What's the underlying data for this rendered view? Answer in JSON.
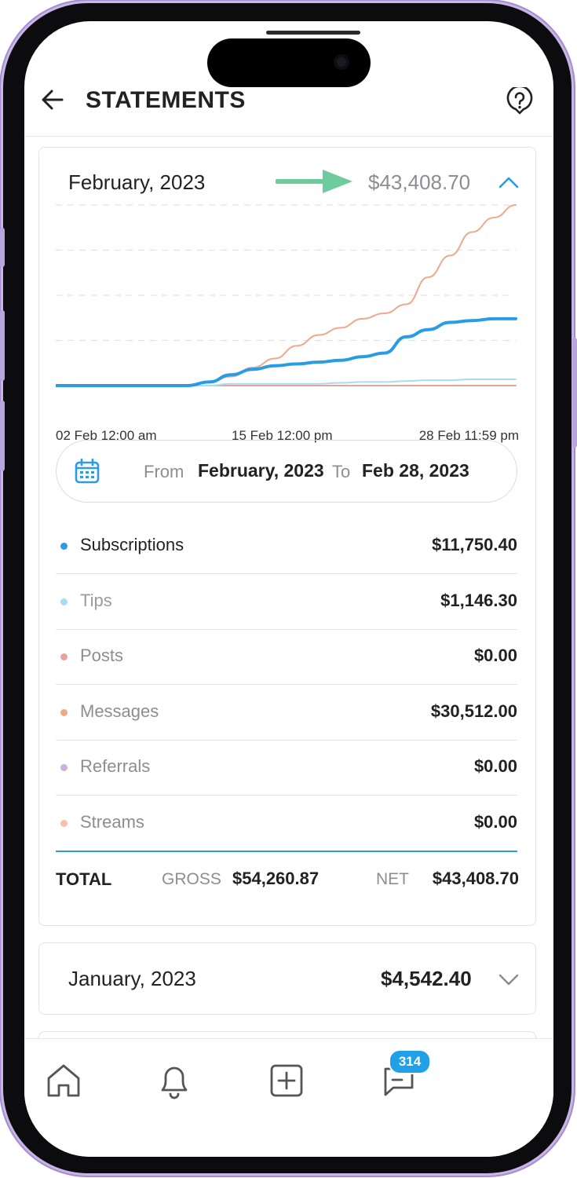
{
  "header": {
    "title": "STATEMENTS",
    "back_icon": "arrow-left-icon",
    "help_icon": "help-circle-icon"
  },
  "feb_card": {
    "month": "February, 2023",
    "amount": "$43,408.70",
    "expanded": true,
    "x_ticks": [
      "02 Feb 12:00 am",
      "15 Feb 12:00 pm",
      "28 Feb 11:59 pm"
    ],
    "range": {
      "from_word": "From",
      "from_value": "February, 2023",
      "to_word": "To",
      "to_value": "Feb 28, 2023"
    },
    "rows": [
      {
        "label": "Subscriptions",
        "value": "$11,750.40",
        "dot_color": "#2a9be5",
        "label_color": "#222222"
      },
      {
        "label": "Tips",
        "value": "$1,146.30",
        "dot_color": "#a9dcf2",
        "label_color": "#9a9aa0"
      },
      {
        "label": "Posts",
        "value": "$0.00",
        "dot_color": "#e8a39b",
        "label_color": "#8d8d93"
      },
      {
        "label": "Messages",
        "value": "$30,512.00",
        "dot_color": "#f0a88c",
        "label_color": "#8d8d93"
      },
      {
        "label": "Referrals",
        "value": "$0.00",
        "dot_color": "#c9b2e3",
        "label_color": "#8d8d93"
      },
      {
        "label": "Streams",
        "value": "$0.00",
        "dot_color": "#f6c1a8",
        "label_color": "#8d8d93"
      }
    ],
    "total": {
      "label": "TOTAL",
      "gross_word": "GROSS",
      "gross_value": "$54,260.87",
      "net_word": "NET",
      "net_value": "$43,408.70"
    }
  },
  "jan_card": {
    "month": "January, 2023",
    "amount": "$4,542.40",
    "expanded": false
  },
  "nav": {
    "items": [
      "home-icon",
      "bell-icon",
      "plus-square-icon",
      "chat-icon"
    ],
    "chat_badge": "314"
  },
  "chart_data": {
    "type": "line",
    "x_ticks": [
      "02 Feb 12:00 am",
      "15 Feb 12:00 pm",
      "28 Feb 11:59 pm"
    ],
    "grid": true,
    "legend": "none",
    "series": [
      {
        "color": "#f0a88c",
        "values": [
          0,
          0,
          0,
          0,
          0,
          0,
          0,
          0.02,
          0.05,
          0.1,
          0.15,
          0.22,
          0.28,
          0.32,
          0.37,
          0.4,
          0.45,
          0.6,
          0.72,
          0.85,
          0.93,
          1.0
        ]
      },
      {
        "color": "#2a9be5",
        "values": [
          0,
          0,
          0,
          0,
          0,
          0,
          0,
          0.02,
          0.06,
          0.09,
          0.11,
          0.12,
          0.13,
          0.14,
          0.16,
          0.18,
          0.27,
          0.31,
          0.35,
          0.36,
          0.37,
          0.37
        ]
      },
      {
        "color": "#a9dcf2",
        "values": [
          0,
          0,
          0,
          0,
          0,
          0,
          0,
          0,
          0.01,
          0.01,
          0.01,
          0.01,
          0.01,
          0.015,
          0.02,
          0.02,
          0.025,
          0.03,
          0.03,
          0.035,
          0.035,
          0.035
        ]
      },
      {
        "color": "#e8a39b",
        "values": [
          0,
          0,
          0,
          0,
          0,
          0,
          0,
          0,
          0,
          0,
          0,
          0,
          0,
          0,
          0,
          0,
          0,
          0,
          0,
          0,
          0,
          0
        ]
      }
    ]
  },
  "colors": {
    "accent": "#2a9be5",
    "arrow": "#6dcb9c"
  }
}
